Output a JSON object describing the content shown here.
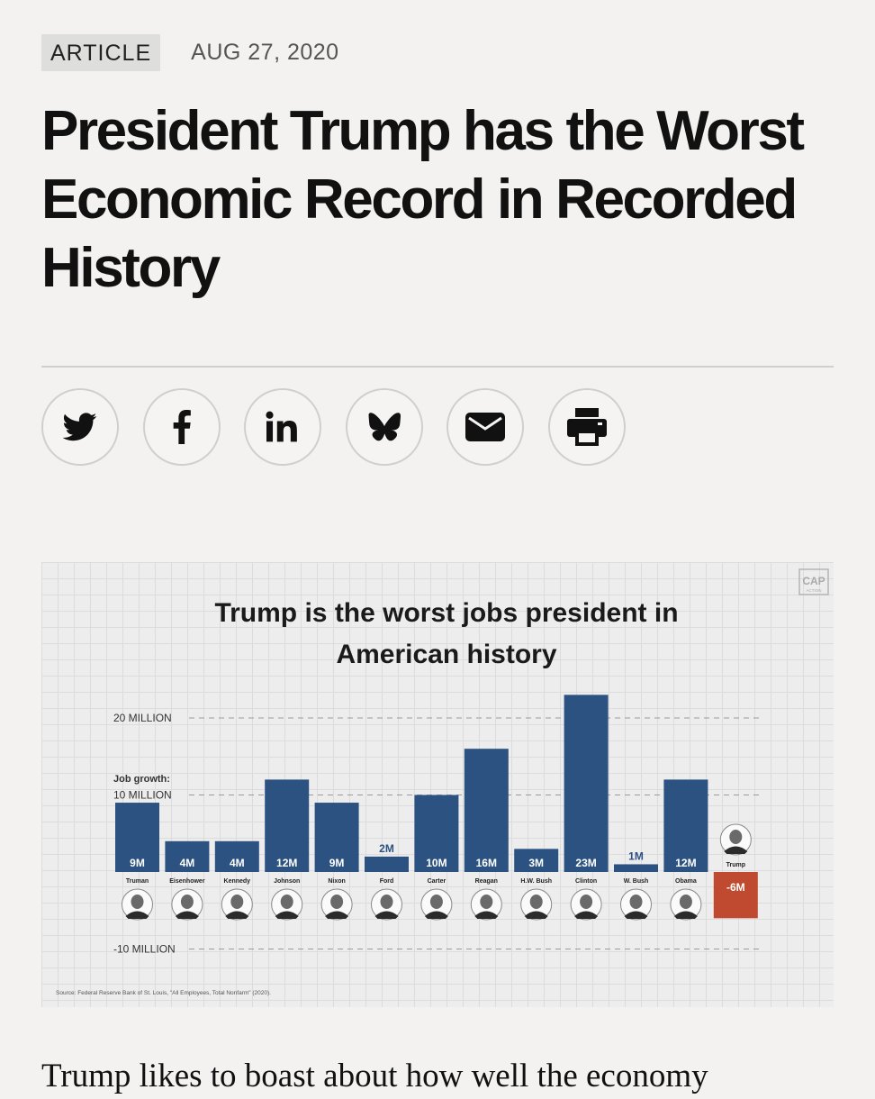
{
  "article": {
    "tag": "ARTICLE",
    "date": "AUG 27, 2020",
    "headline": "President Trump has the Worst Economic Record in Recorded History",
    "body_start": "Trump likes to boast about how well the economy"
  },
  "share": [
    {
      "name": "twitter",
      "icon": "twitter-icon"
    },
    {
      "name": "facebook",
      "icon": "facebook-icon"
    },
    {
      "name": "linkedin",
      "icon": "linkedin-icon"
    },
    {
      "name": "bluesky",
      "icon": "bluesky-icon"
    },
    {
      "name": "email",
      "icon": "email-icon"
    },
    {
      "name": "print",
      "icon": "print-icon"
    }
  ],
  "colors": {
    "bar": "#2c5282",
    "negative": "#bf4a2f",
    "background": "#f3f2f1"
  },
  "chart_data": {
    "type": "bar",
    "title_line1": "Trump is the worst jobs president in",
    "title_line2": "American history",
    "ylabel": "Job growth:",
    "yticks": [
      {
        "value": 20,
        "label": "20 MILLION"
      },
      {
        "value": 10,
        "label": "10 MILLION"
      },
      {
        "value": -10,
        "label": "-10 MILLION"
      }
    ],
    "ylim": [
      -10,
      23
    ],
    "unit": "million jobs",
    "categories": [
      "Truman",
      "Eisenhower",
      "Kennedy",
      "Johnson",
      "Nixon",
      "Ford",
      "Carter",
      "Reagan",
      "H.W. Bush",
      "Clinton",
      "W. Bush",
      "Obama",
      "Trump"
    ],
    "values": [
      9,
      4,
      4,
      12,
      9,
      2,
      10,
      16,
      3,
      23,
      1,
      12,
      -6
    ],
    "value_labels": [
      "9M",
      "4M",
      "4M",
      "12M",
      "9M",
      "2M",
      "10M",
      "16M",
      "3M",
      "23M",
      "1M",
      "12M",
      "-6M"
    ],
    "logo": "CAP",
    "logo_sub": "ACTION",
    "source": "Source: Federal Reserve Bank of St. Louis, \"All Employees, Total Nonfarm\" (2020)."
  }
}
